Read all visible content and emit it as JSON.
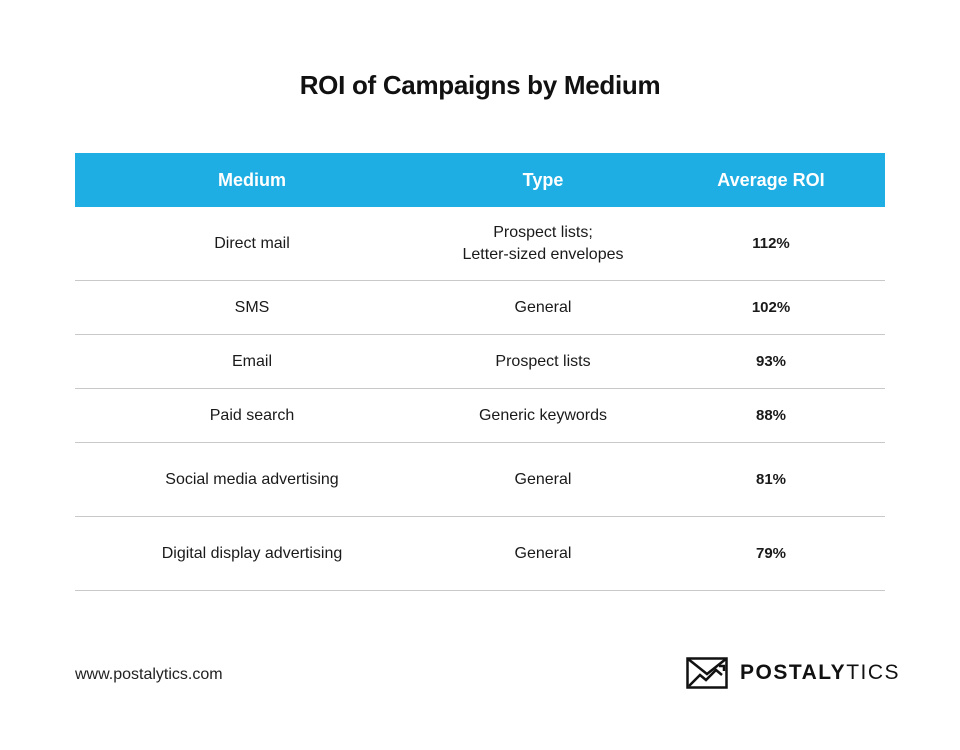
{
  "title": "ROI of Campaigns by Medium",
  "chart_data": {
    "type": "table",
    "columns": [
      "Medium",
      "Type",
      "Average ROI"
    ],
    "rows": [
      {
        "medium": "Direct mail",
        "type_lines": [
          "Prospect lists;",
          "Letter-sized envelopes"
        ],
        "roi": "112%"
      },
      {
        "medium": "SMS",
        "type_lines": [
          "General"
        ],
        "roi": "102%"
      },
      {
        "medium": "Email",
        "type_lines": [
          "Prospect lists"
        ],
        "roi": "93%"
      },
      {
        "medium": "Paid search",
        "type_lines": [
          "Generic keywords"
        ],
        "roi": "88%"
      },
      {
        "medium": "Social media advertising",
        "type_lines": [
          "General"
        ],
        "roi": "81%"
      },
      {
        "medium": "Digital display advertising",
        "type_lines": [
          "General"
        ],
        "roi": "79%"
      }
    ]
  },
  "footer": {
    "url": "www.postalytics.com",
    "logo_bold": "POSTALY",
    "logo_light": "TICS",
    "logo_icon": "envelope-chart-icon"
  },
  "colors": {
    "header_bg": "#1eaee3",
    "header_text": "#ffffff",
    "row_divider": "#c9c9c9"
  }
}
